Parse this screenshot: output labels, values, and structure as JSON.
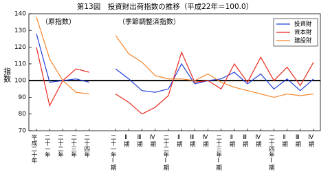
{
  "chart_data": {
    "type": "line",
    "title": "第13図　投資財出荷指数の推移（平成22年＝100.0）",
    "ylabel": "指数",
    "annotations": [
      "（原指数）",
      "（季節調整済指数）"
    ],
    "categories": [
      "平成二十年",
      "二十一年",
      "二十二年",
      "二十三年",
      "二十四年",
      null,
      "二十一年Ⅰ期",
      "Ⅱ期",
      "Ⅲ期",
      "Ⅳ期",
      "二十二年Ⅰ期",
      "Ⅱ期",
      "Ⅲ期",
      "Ⅳ期",
      "二十三年Ⅰ期",
      "Ⅱ期",
      "Ⅲ期",
      "Ⅳ期",
      "二十四年Ⅰ期",
      "Ⅱ期",
      "Ⅲ期",
      "Ⅳ期"
    ],
    "series": [
      {
        "name": "投資財",
        "color": "#1f3fd8",
        "values": [
          128,
          99,
          100,
          101,
          99,
          null,
          107,
          101,
          94,
          93,
          95,
          110,
          98,
          100,
          101,
          105,
          98,
          104,
          95,
          101,
          94,
          101
        ]
      },
      {
        "name": "資本財",
        "color": "#e8281e",
        "values": [
          120,
          85,
          100,
          107,
          105,
          null,
          92,
          87,
          80,
          84,
          91,
          117,
          99,
          100,
          95,
          110,
          99,
          114,
          100,
          108,
          97,
          111
        ]
      },
      {
        "name": "建設財",
        "color": "#f5842a",
        "values": [
          138,
          113,
          100,
          93,
          92,
          null,
          127,
          116,
          111,
          103,
          101,
          101,
          100,
          104,
          99,
          96,
          94,
          92,
          90,
          92,
          91,
          92
        ]
      }
    ],
    "ylim": [
      70,
      140
    ],
    "yticks": [
      70,
      80,
      90,
      100,
      110,
      120,
      130,
      140
    ],
    "reference_line": 100,
    "legend": "upper right"
  }
}
